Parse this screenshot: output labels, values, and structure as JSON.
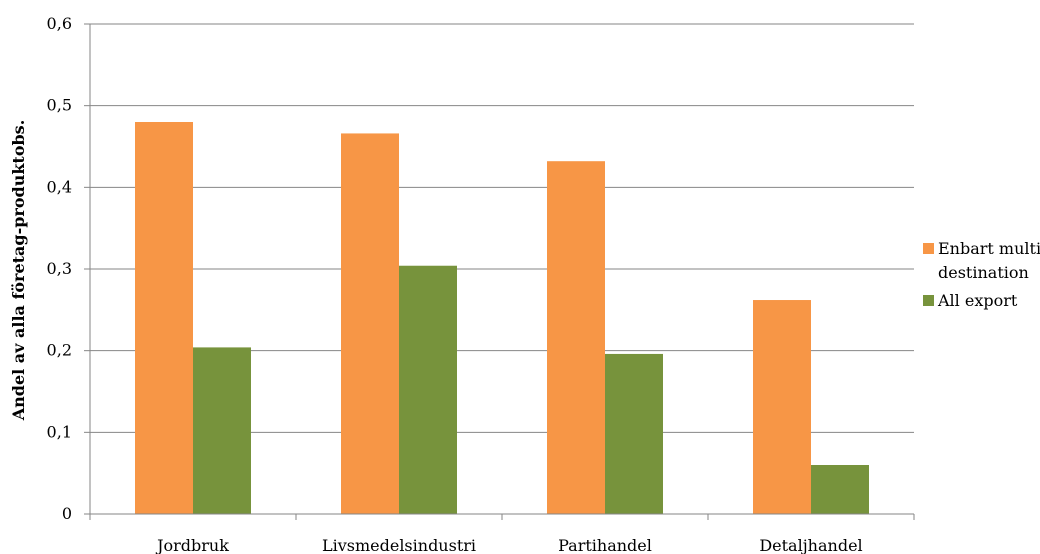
{
  "chart_data": {
    "type": "bar",
    "title": "",
    "xlabel": "",
    "ylabel": "Andel av alla företag-produktobs.",
    "categories": [
      "Jordbruk",
      "Livsmedelsindustri",
      "Partihandel",
      "Detaljhandel"
    ],
    "series": [
      {
        "name": "Enbart multi-destination",
        "legend_lines": [
          "Enbart multi-",
          "destination"
        ],
        "color": "#F79646",
        "values": [
          0.48,
          0.466,
          0.432,
          0.262
        ]
      },
      {
        "name": "All export",
        "legend_lines": [
          "All export"
        ],
        "color": "#77933C",
        "values": [
          0.204,
          0.304,
          0.196,
          0.06
        ]
      }
    ],
    "ylim": [
      0,
      0.6
    ],
    "yticks": [
      "0",
      "0,1",
      "0,2",
      "0,3",
      "0,4",
      "0,5",
      "0,6"
    ],
    "grid": true,
    "legend_position": "right"
  }
}
